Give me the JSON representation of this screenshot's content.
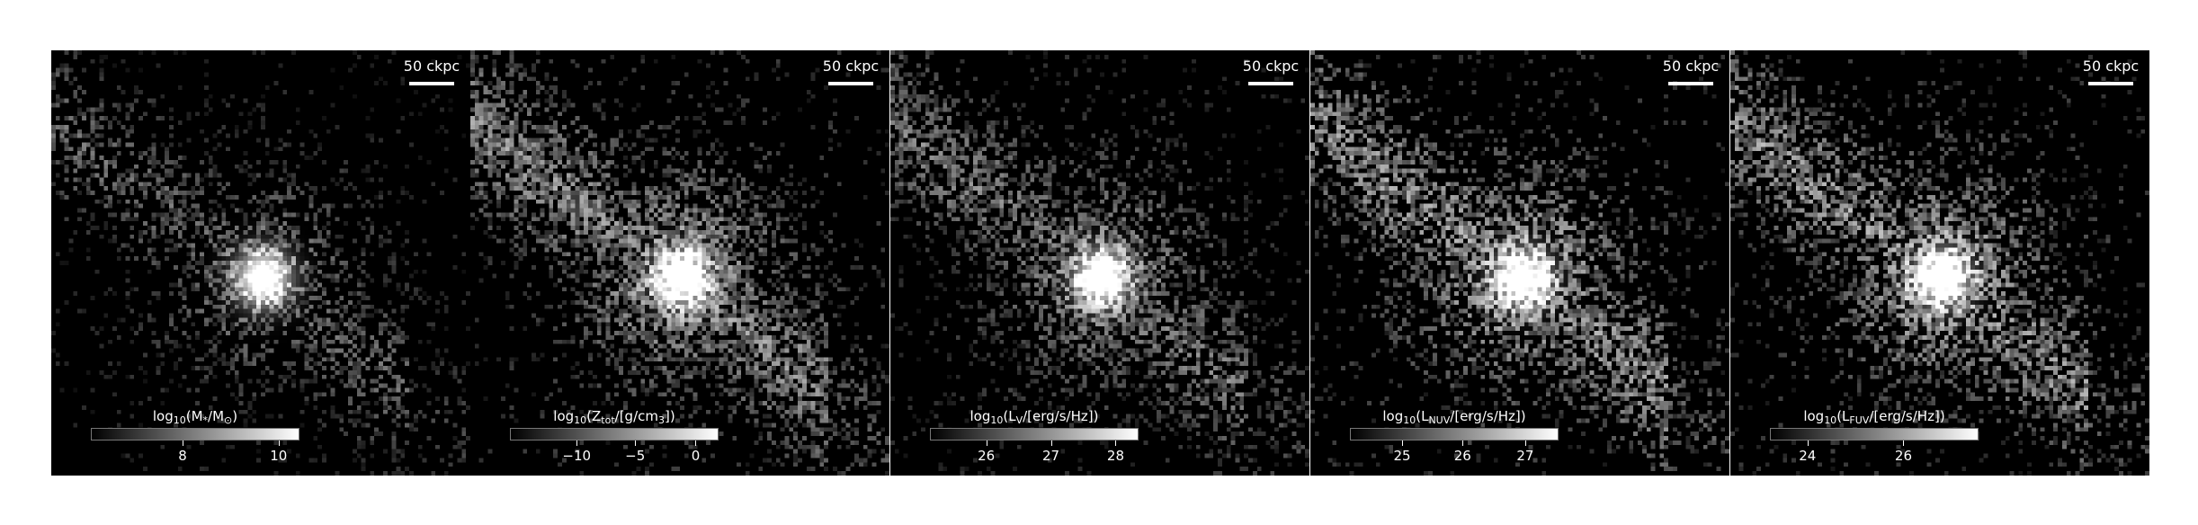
{
  "panels": [
    {
      "scalebar": "50 ckpc",
      "colorbar": {
        "label_prefix": "log",
        "label_sub": "10",
        "label_main": "(M",
        "label_tail_sub": "*",
        "label_rest": "/M",
        "label_rest_sub": "⊙",
        "label_close": ")",
        "ticks": [
          {
            "text": "8",
            "frac": 0.44
          },
          {
            "text": "10",
            "frac": 0.9
          }
        ]
      },
      "image": {
        "seed": 11,
        "brightness": 0.55,
        "fill": 0.55
      }
    },
    {
      "scalebar": "50 ckpc",
      "colorbar": {
        "label_prefix": "log",
        "label_sub": "10",
        "label_main": "(Z",
        "label_tail_sub": "tot",
        "label_rest": "/[g/cm",
        "label_rest_sub": "3",
        "label_close": "])",
        "ticks": [
          {
            "text": "−10",
            "frac": 0.32
          },
          {
            "text": "−5",
            "frac": 0.6
          },
          {
            "text": "0",
            "frac": 0.89
          }
        ]
      },
      "image": {
        "seed": 23,
        "brightness": 0.75,
        "fill": 0.95
      }
    },
    {
      "scalebar": "50 ckpc",
      "colorbar": {
        "label_prefix": "log",
        "label_sub": "10",
        "label_main": "(L",
        "label_tail_sub": "V",
        "label_rest": "/[erg/s/Hz]",
        "label_rest_sub": "",
        "label_close": ")",
        "ticks": [
          {
            "text": "26",
            "frac": 0.27
          },
          {
            "text": "27",
            "frac": 0.58
          },
          {
            "text": "28",
            "frac": 0.89
          }
        ]
      },
      "image": {
        "seed": 37,
        "brightness": 0.65,
        "fill": 0.8
      }
    },
    {
      "scalebar": "50 ckpc",
      "colorbar": {
        "label_prefix": "log",
        "label_sub": "10",
        "label_main": "(L",
        "label_tail_sub": "NUV",
        "label_rest": "/[erg/s/Hz]",
        "label_rest_sub": "",
        "label_close": ")",
        "ticks": [
          {
            "text": "25",
            "frac": 0.25
          },
          {
            "text": "26",
            "frac": 0.54
          },
          {
            "text": "27",
            "frac": 0.84
          }
        ]
      },
      "image": {
        "seed": 51,
        "brightness": 0.8,
        "fill": 0.85
      }
    },
    {
      "scalebar": "50 ckpc",
      "colorbar": {
        "label_prefix": "log",
        "label_sub": "10",
        "label_main": "(L",
        "label_tail_sub": "FUV",
        "label_rest": "/[erg/s/Hz]",
        "label_rest_sub": "",
        "label_close": ")",
        "ticks": [
          {
            "text": "24",
            "frac": 0.18
          },
          {
            "text": "26",
            "frac": 0.64
          }
        ]
      },
      "image": {
        "seed": 73,
        "brightness": 0.8,
        "fill": 0.85
      }
    }
  ]
}
